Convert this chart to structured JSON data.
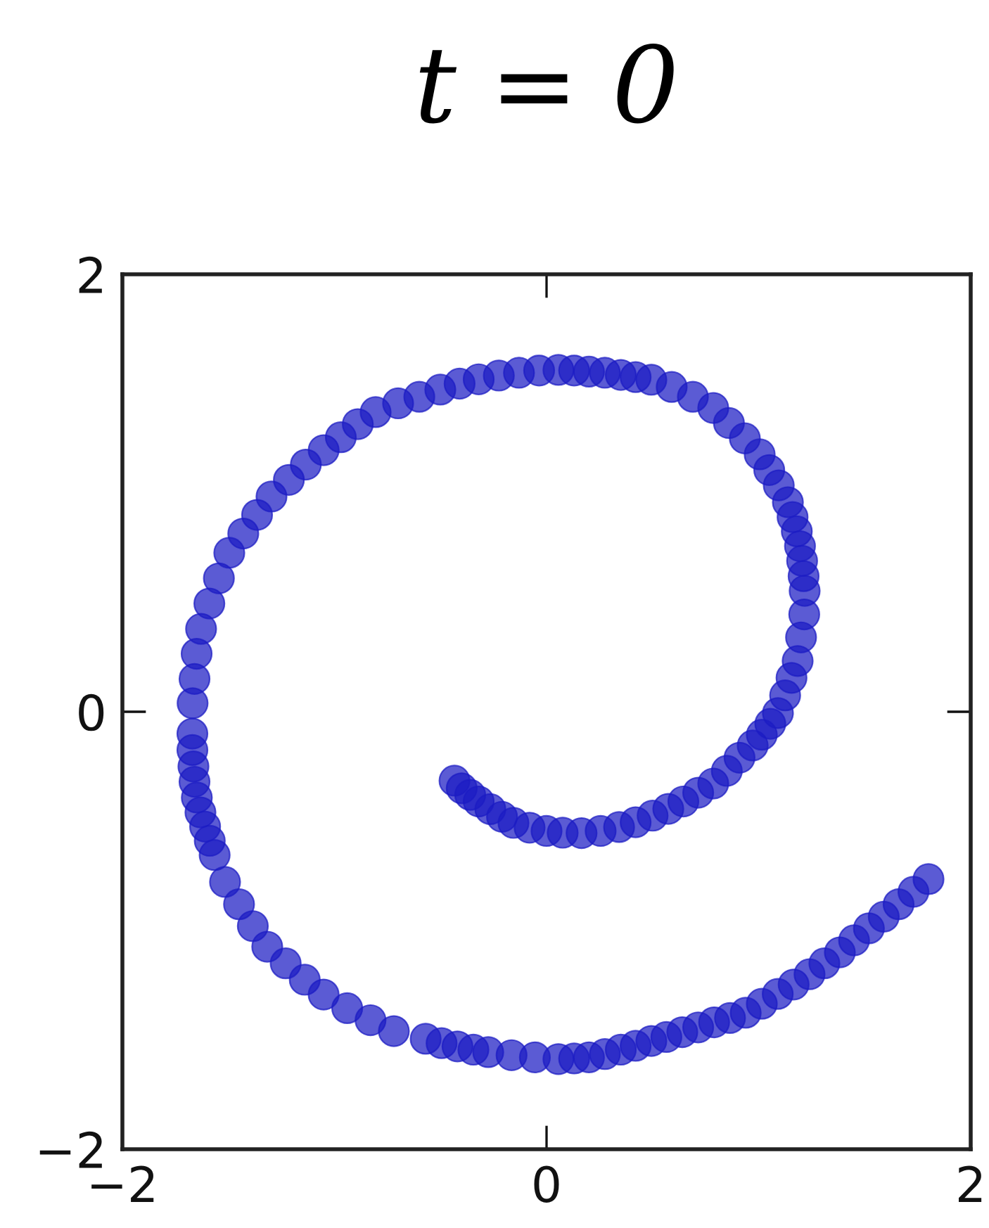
{
  "chart_data": {
    "type": "scatter",
    "title": "t = 0",
    "x": [
      -0.434,
      -0.4,
      -0.36,
      -0.32,
      -0.265,
      -0.21,
      -0.156,
      -0.08,
      0.0,
      0.076,
      0.165,
      0.255,
      0.342,
      0.42,
      0.5,
      0.574,
      0.645,
      0.715,
      0.786,
      0.85,
      0.91,
      0.972,
      1.015,
      1.055,
      1.091,
      1.125,
      1.155,
      1.184,
      1.2,
      1.215,
      1.217,
      1.212,
      1.205,
      1.195,
      1.18,
      1.16,
      1.138,
      1.095,
      1.05,
      1.005,
      0.935,
      0.86,
      0.786,
      0.69,
      0.59,
      0.494,
      0.42,
      0.35,
      0.275,
      0.2,
      0.13,
      0.056,
      -0.035,
      -0.13,
      -0.225,
      -0.32,
      -0.41,
      -0.501,
      -0.6,
      -0.7,
      -0.806,
      -0.89,
      -0.97,
      -1.051,
      -1.135,
      -1.215,
      -1.297,
      -1.365,
      -1.43,
      -1.496,
      -1.545,
      -1.59,
      -1.629,
      -1.65,
      -1.66,
      -1.669,
      -1.67,
      -1.67,
      -1.665,
      -1.66,
      -1.649,
      -1.632,
      -1.61,
      -1.588,
      -1.565,
      -1.516,
      -1.45,
      -1.385,
      -1.317,
      -1.23,
      -1.14,
      -1.051,
      -0.94,
      -0.83,
      -0.72,
      -0.57,
      -0.495,
      -0.42,
      -0.345,
      -0.275,
      -0.165,
      -0.055,
      0.056,
      0.13,
      0.2,
      0.275,
      0.35,
      0.42,
      0.494,
      0.565,
      0.64,
      0.715,
      0.79,
      0.865,
      0.939,
      1.015,
      1.09,
      1.165,
      1.24,
      1.31,
      1.383,
      1.45,
      1.52,
      1.59,
      1.66,
      1.73,
      1.801
    ],
    "values": [
      -0.315,
      -0.35,
      -0.38,
      -0.41,
      -0.445,
      -0.48,
      -0.508,
      -0.53,
      -0.545,
      -0.553,
      -0.555,
      -0.545,
      -0.527,
      -0.505,
      -0.475,
      -0.444,
      -0.41,
      -0.37,
      -0.328,
      -0.27,
      -0.21,
      -0.154,
      -0.105,
      -0.055,
      -0.006,
      0.075,
      0.155,
      0.232,
      0.34,
      0.445,
      0.553,
      0.62,
      0.69,
      0.757,
      0.825,
      0.89,
      0.958,
      1.035,
      1.105,
      1.177,
      1.25,
      1.32,
      1.389,
      1.44,
      1.485,
      1.518,
      1.53,
      1.54,
      1.55,
      1.555,
      1.56,
      1.563,
      1.56,
      1.55,
      1.537,
      1.52,
      1.5,
      1.473,
      1.44,
      1.41,
      1.37,
      1.315,
      1.255,
      1.196,
      1.13,
      1.06,
      0.984,
      0.9,
      0.815,
      0.727,
      0.61,
      0.495,
      0.379,
      0.265,
      0.15,
      0.039,
      -0.1,
      -0.175,
      -0.25,
      -0.32,
      -0.392,
      -0.46,
      -0.525,
      -0.59,
      -0.655,
      -0.778,
      -0.88,
      -0.98,
      -1.074,
      -1.15,
      -1.225,
      -1.293,
      -1.355,
      -1.41,
      -1.46,
      -1.495,
      -1.515,
      -1.53,
      -1.545,
      -1.556,
      -1.57,
      -1.58,
      -1.588,
      -1.585,
      -1.58,
      -1.565,
      -1.545,
      -1.527,
      -1.505,
      -1.487,
      -1.465,
      -1.443,
      -1.42,
      -1.4,
      -1.376,
      -1.335,
      -1.29,
      -1.247,
      -1.2,
      -1.15,
      -1.1,
      -1.045,
      -0.99,
      -0.937,
      -0.88,
      -0.823,
      -0.765
    ],
    "color": "#1c1cc4",
    "marker": "circle",
    "xlim": [
      -2,
      2
    ],
    "ylim": [
      -2,
      2
    ],
    "xticks": [
      {
        "value": -2,
        "label": "−2"
      },
      0,
      2
    ],
    "yticks": [
      {
        "value": -2,
        "label": "−2"
      },
      0,
      2
    ],
    "grid": false
  }
}
